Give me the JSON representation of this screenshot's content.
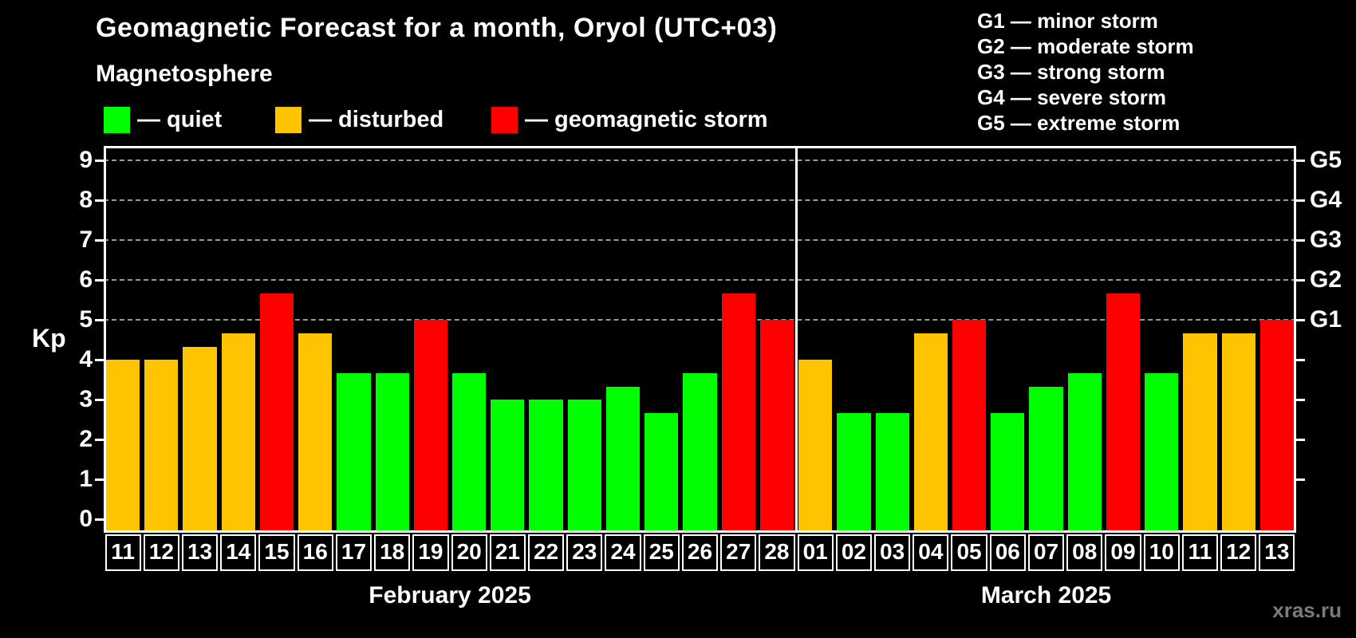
{
  "title": "Geomagnetic Forecast for a month, Oryol (UTC+03)",
  "subtitle": "Magnetosphere",
  "legend": {
    "items": [
      {
        "status": "quiet",
        "label": "— quiet",
        "color": "#00ff00"
      },
      {
        "status": "disturbed",
        "label": "— disturbed",
        "color": "#ffc400"
      },
      {
        "status": "storm",
        "label": "— geomagnetic storm",
        "color": "#ff0000"
      }
    ]
  },
  "g_scale_legend": [
    "G1 — minor storm",
    "G2 — moderate storm",
    "G3 — strong storm",
    "G4 — severe storm",
    "G5 — extreme storm"
  ],
  "watermark": "xras.ru",
  "chart_data": {
    "type": "bar",
    "ylabel": "Kp",
    "y_ticks": [
      0,
      1,
      2,
      3,
      4,
      5,
      6,
      7,
      8,
      9
    ],
    "ylim": [
      0,
      9
    ],
    "grid_levels": [
      5,
      6,
      7,
      8,
      9
    ],
    "grid_on": true,
    "legend_position": "top-left",
    "right_axis_labels": [
      {
        "kp": 5,
        "label": "G1"
      },
      {
        "kp": 6,
        "label": "G2"
      },
      {
        "kp": 7,
        "label": "G3"
      },
      {
        "kp": 8,
        "label": "G4"
      },
      {
        "kp": 9,
        "label": "G5"
      }
    ],
    "status_colors": {
      "quiet": "#00ff00",
      "disturbed": "#ffc400",
      "storm": "#ff0000"
    },
    "groups": [
      {
        "month": "February 2025",
        "bars": [
          {
            "day": "11",
            "kp": 4.0,
            "status": "disturbed"
          },
          {
            "day": "12",
            "kp": 4.0,
            "status": "disturbed"
          },
          {
            "day": "13",
            "kp": 4.33,
            "status": "disturbed"
          },
          {
            "day": "14",
            "kp": 4.67,
            "status": "disturbed"
          },
          {
            "day": "15",
            "kp": 5.67,
            "status": "storm"
          },
          {
            "day": "16",
            "kp": 4.67,
            "status": "disturbed"
          },
          {
            "day": "17",
            "kp": 3.67,
            "status": "quiet"
          },
          {
            "day": "18",
            "kp": 3.67,
            "status": "quiet"
          },
          {
            "day": "19",
            "kp": 5.0,
            "status": "storm"
          },
          {
            "day": "20",
            "kp": 3.67,
            "status": "quiet"
          },
          {
            "day": "21",
            "kp": 3.0,
            "status": "quiet"
          },
          {
            "day": "22",
            "kp": 3.0,
            "status": "quiet"
          },
          {
            "day": "23",
            "kp": 3.0,
            "status": "quiet"
          },
          {
            "day": "24",
            "kp": 3.33,
            "status": "quiet"
          },
          {
            "day": "25",
            "kp": 2.67,
            "status": "quiet"
          },
          {
            "day": "26",
            "kp": 3.67,
            "status": "quiet"
          },
          {
            "day": "27",
            "kp": 5.67,
            "status": "storm"
          },
          {
            "day": "28",
            "kp": 5.0,
            "status": "storm"
          }
        ]
      },
      {
        "month": "March 2025",
        "bars": [
          {
            "day": "01",
            "kp": 4.0,
            "status": "disturbed"
          },
          {
            "day": "02",
            "kp": 2.67,
            "status": "quiet"
          },
          {
            "day": "03",
            "kp": 2.67,
            "status": "quiet"
          },
          {
            "day": "04",
            "kp": 4.67,
            "status": "disturbed"
          },
          {
            "day": "05",
            "kp": 5.0,
            "status": "storm"
          },
          {
            "day": "06",
            "kp": 2.67,
            "status": "quiet"
          },
          {
            "day": "07",
            "kp": 3.33,
            "status": "quiet"
          },
          {
            "day": "08",
            "kp": 3.67,
            "status": "quiet"
          },
          {
            "day": "09",
            "kp": 5.67,
            "status": "storm"
          },
          {
            "day": "10",
            "kp": 3.67,
            "status": "quiet"
          },
          {
            "day": "11",
            "kp": 4.67,
            "status": "disturbed"
          },
          {
            "day": "12",
            "kp": 4.67,
            "status": "disturbed"
          },
          {
            "day": "13",
            "kp": 5.0,
            "status": "storm"
          }
        ]
      }
    ]
  }
}
